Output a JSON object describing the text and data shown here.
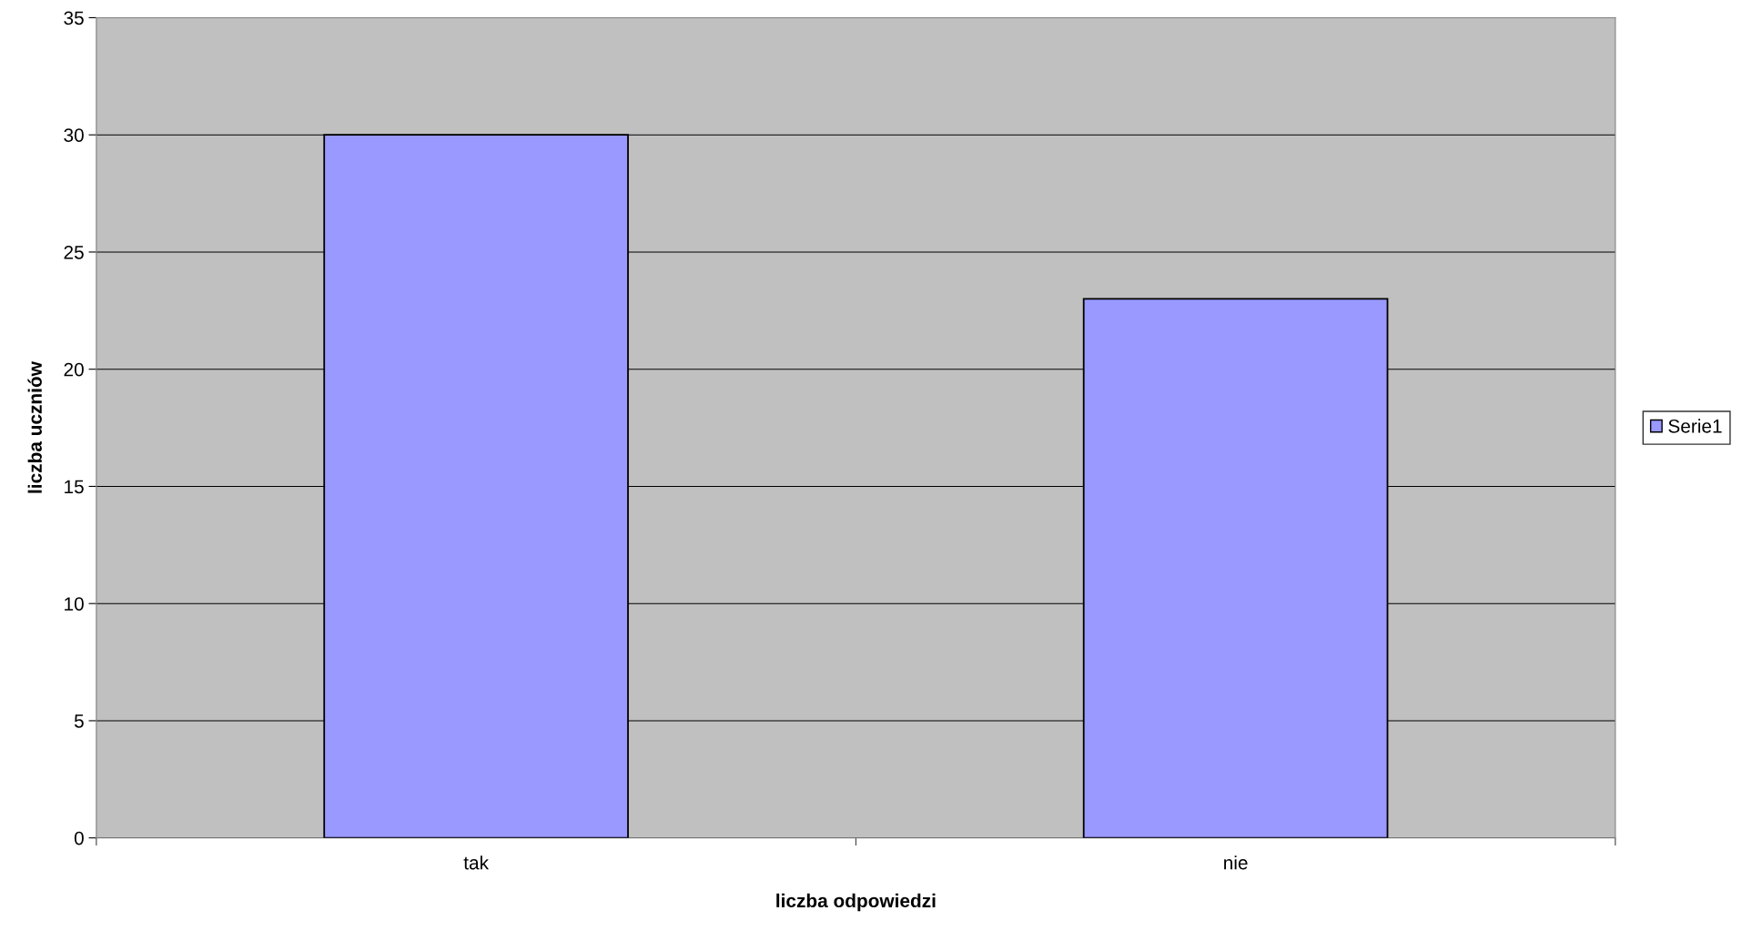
{
  "chart_data": {
    "type": "bar",
    "xlabel": "liczba odpowiedzi",
    "ylabel": "liczba uczniów",
    "categories": [
      "tak",
      "nie"
    ],
    "series": [
      {
        "name": "Serie1",
        "color": "#9999ff",
        "values": [
          30,
          23
        ]
      }
    ],
    "ylim": [
      0,
      35
    ],
    "yticks": [
      0,
      5,
      10,
      15,
      20,
      25,
      30,
      35
    ],
    "grid": "y",
    "legend": "right"
  }
}
